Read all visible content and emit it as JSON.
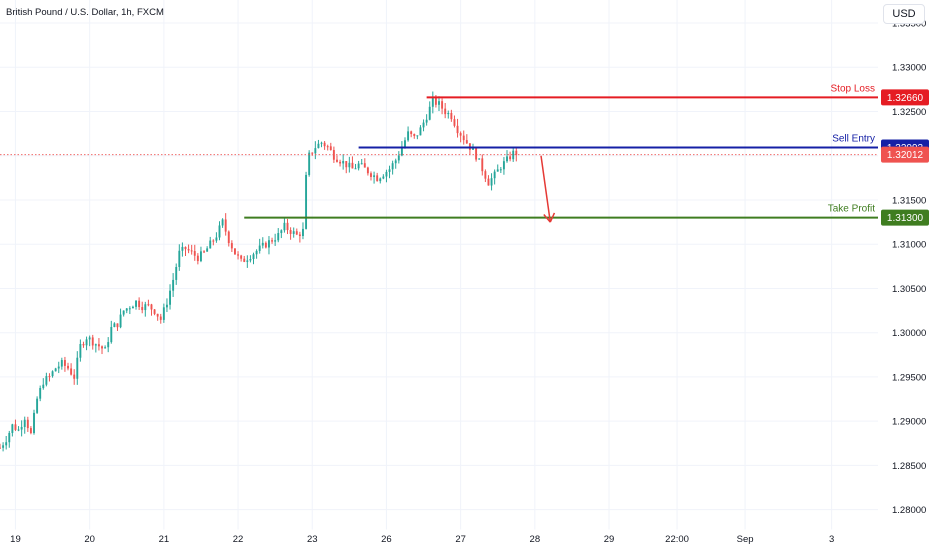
{
  "header": {
    "symbol_title": "British Pound / U.S. Dollar, 1h, FXCM",
    "currency_button": "USD"
  },
  "colors": {
    "up": "#26a69a",
    "down": "#ef5350",
    "stop_loss": "#e51c23",
    "sell_entry": "#1520a6",
    "take_profit": "#3f7d20",
    "arrow": "#e53935",
    "last_price": "#ef5350"
  },
  "chart_data": {
    "type": "candlestick",
    "title": "British Pound / U.S. Dollar, 1h, FXCM",
    "xlabel": "",
    "ylabel": "",
    "ylim": [
      1.2777,
      1.3376
    ],
    "y_ticks": [
      "1.33500",
      "1.33000",
      "1.32500",
      "1.32000",
      "1.31500",
      "1.31000",
      "1.30500",
      "1.30000",
      "1.29500",
      "1.29000",
      "1.28500",
      "1.28000"
    ],
    "x_ticks": [
      {
        "label": "19",
        "pos": 5
      },
      {
        "label": "20",
        "pos": 29
      },
      {
        "label": "21",
        "pos": 53
      },
      {
        "label": "22",
        "pos": 77
      },
      {
        "label": "23",
        "pos": 101
      },
      {
        "label": "26",
        "pos": 125
      },
      {
        "label": "27",
        "pos": 149
      },
      {
        "label": "28",
        "pos": 173
      },
      {
        "label": "29",
        "pos": 197
      },
      {
        "label": "22:00",
        "pos": 219
      },
      {
        "label": "Sep",
        "pos": 241
      },
      {
        "label": "3",
        "pos": 269
      }
    ],
    "anchors": [
      [
        0,
        1.287
      ],
      [
        2,
        1.288
      ],
      [
        4,
        1.2895
      ],
      [
        6,
        1.289
      ],
      [
        8,
        1.2905
      ],
      [
        10,
        1.2885
      ],
      [
        12,
        1.2925
      ],
      [
        14,
        1.2945
      ],
      [
        16,
        1.295
      ],
      [
        18,
        1.296
      ],
      [
        20,
        1.2965
      ],
      [
        22,
        1.296
      ],
      [
        24,
        1.295
      ],
      [
        26,
        1.2985
      ],
      [
        28,
        1.2995
      ],
      [
        30,
        1.299
      ],
      [
        32,
        1.2985
      ],
      [
        34,
        1.298
      ],
      [
        36,
        1.3005
      ],
      [
        38,
        1.301
      ],
      [
        40,
        1.3025
      ],
      [
        42,
        1.303
      ],
      [
        44,
        1.3035
      ],
      [
        46,
        1.303
      ],
      [
        48,
        1.303
      ],
      [
        50,
        1.3025
      ],
      [
        52,
        1.3015
      ],
      [
        54,
        1.3035
      ],
      [
        56,
        1.306
      ],
      [
        58,
        1.309
      ],
      [
        60,
        1.3095
      ],
      [
        62,
        1.309
      ],
      [
        64,
        1.3085
      ],
      [
        66,
        1.309
      ],
      [
        68,
        1.31
      ],
      [
        70,
        1.311
      ],
      [
        72,
        1.3125
      ],
      [
        74,
        1.3105
      ],
      [
        76,
        1.309
      ],
      [
        78,
        1.308
      ],
      [
        80,
        1.3085
      ],
      [
        82,
        1.309
      ],
      [
        84,
        1.3095
      ],
      [
        86,
        1.31
      ],
      [
        88,
        1.3105
      ],
      [
        90,
        1.311
      ],
      [
        92,
        1.312
      ],
      [
        94,
        1.3115
      ],
      [
        96,
        1.311
      ],
      [
        98,
        1.3115
      ],
      [
        99,
        1.3175
      ],
      [
        100,
        1.32
      ],
      [
        102,
        1.321
      ],
      [
        104,
        1.3215
      ],
      [
        106,
        1.321
      ],
      [
        108,
        1.32
      ],
      [
        110,
        1.3195
      ],
      [
        112,
        1.319
      ],
      [
        114,
        1.3185
      ],
      [
        116,
        1.319
      ],
      [
        118,
        1.3185
      ],
      [
        120,
        1.318
      ],
      [
        122,
        1.3175
      ],
      [
        124,
        1.318
      ],
      [
        126,
        1.3185
      ],
      [
        128,
        1.3195
      ],
      [
        130,
        1.321
      ],
      [
        132,
        1.3225
      ],
      [
        134,
        1.322
      ],
      [
        136,
        1.323
      ],
      [
        138,
        1.3245
      ],
      [
        140,
        1.3262
      ],
      [
        142,
        1.3258
      ],
      [
        144,
        1.325
      ],
      [
        146,
        1.3245
      ],
      [
        148,
        1.323
      ],
      [
        150,
        1.322
      ],
      [
        152,
        1.321
      ],
      [
        154,
        1.32
      ],
      [
        156,
        1.3185
      ],
      [
        158,
        1.317
      ],
      [
        160,
        1.3178
      ],
      [
        162,
        1.3188
      ],
      [
        164,
        1.3195
      ],
      [
        166,
        1.3203
      ],
      [
        167,
        1.3201
      ]
    ],
    "x_range": [
      0,
      284
    ],
    "levels": [
      {
        "name": "Stop Loss",
        "price": 1.3266,
        "price_label": "1.32660",
        "x_start": 138
      },
      {
        "name": "Sell Entry",
        "price": 1.32093,
        "price_label": "1.32093",
        "x_start": 116
      },
      {
        "name": "Take Profit",
        "price": 1.313,
        "price_label": "1.31300",
        "x_start": 79
      }
    ],
    "last_price": {
      "price": 1.32012,
      "label": "1.32012"
    },
    "arrow": {
      "x_from": 175,
      "y_from": 1.32,
      "x_to": 178,
      "y_to": 1.3125
    }
  }
}
